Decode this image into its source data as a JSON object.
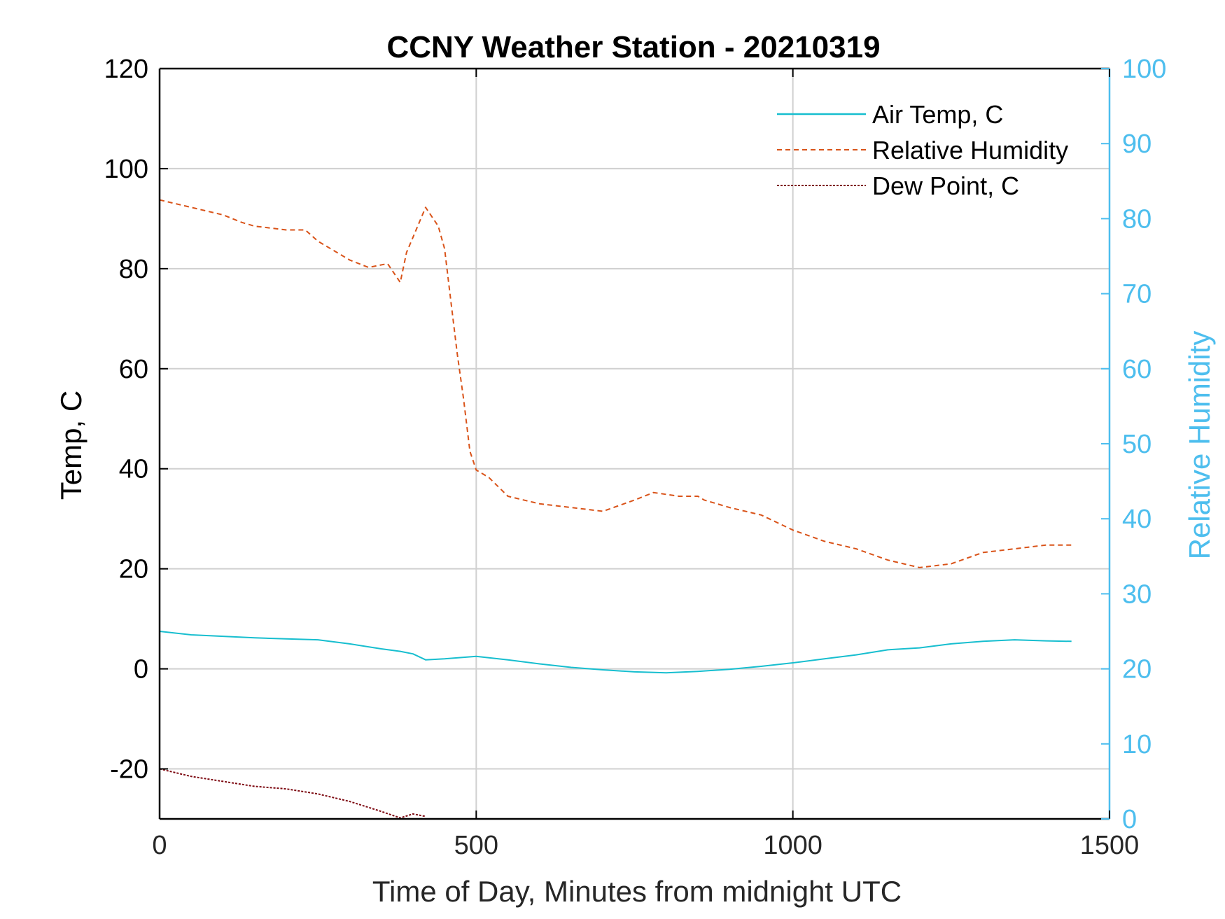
{
  "chart_data": {
    "type": "line",
    "title": "CCNY Weather Station - 20210319",
    "xlabel": "Time of Day, Minutes from midnight UTC",
    "ylabel_left": "Temp, C",
    "ylabel_right": "Relative Humidity",
    "xlim": [
      0,
      1500
    ],
    "ylim_left": [
      -30,
      120
    ],
    "ylim_right": [
      0,
      100
    ],
    "xticks": [
      0,
      500,
      1000,
      1500
    ],
    "yticks_left": [
      -20,
      0,
      20,
      40,
      60,
      80,
      100,
      120
    ],
    "yticks_right": [
      0,
      10,
      20,
      30,
      40,
      50,
      60,
      70,
      80,
      90,
      100
    ],
    "grid": true,
    "legend_position": "top-right",
    "colors": {
      "left_axis": "#000000",
      "right_axis": "#4DBEEE",
      "grid": "#d0d0d0"
    },
    "series": [
      {
        "name": "Air Temp, C",
        "axis": "left",
        "color": "#17BECF",
        "style": "solid",
        "x": [
          0,
          50,
          100,
          150,
          200,
          250,
          300,
          350,
          380,
          400,
          420,
          450,
          500,
          550,
          600,
          650,
          700,
          750,
          800,
          850,
          900,
          950,
          1000,
          1050,
          1100,
          1150,
          1200,
          1250,
          1300,
          1350,
          1400,
          1440
        ],
        "values": [
          7.5,
          6.8,
          6.5,
          6.2,
          6.0,
          5.8,
          5.0,
          4.0,
          3.5,
          3.0,
          1.8,
          2.0,
          2.5,
          1.8,
          1.0,
          0.3,
          -0.2,
          -0.6,
          -0.8,
          -0.5,
          -0.1,
          0.5,
          1.2,
          2.0,
          2.8,
          3.8,
          4.2,
          5.0,
          5.5,
          5.8,
          5.6,
          5.5
        ]
      },
      {
        "name": "Relative Humidity",
        "axis": "right",
        "color": "#D95319",
        "style": "dashed",
        "x": [
          0,
          50,
          100,
          130,
          150,
          200,
          230,
          250,
          300,
          330,
          360,
          380,
          390,
          400,
          420,
          440,
          450,
          460,
          470,
          480,
          490,
          500,
          520,
          550,
          600,
          650,
          700,
          750,
          780,
          820,
          850,
          860,
          900,
          950,
          1000,
          1050,
          1100,
          1150,
          1200,
          1250,
          1300,
          1350,
          1400,
          1440
        ],
        "values": [
          82.5,
          81.5,
          80.5,
          79.5,
          79.0,
          78.5,
          78.5,
          77.0,
          74.5,
          73.5,
          74.0,
          71.5,
          75.5,
          77.5,
          81.5,
          79.0,
          76.0,
          69.0,
          62.0,
          56.0,
          49.0,
          46.5,
          45.5,
          43.0,
          42.0,
          41.5,
          41.0,
          42.5,
          43.5,
          43.0,
          43.0,
          42.5,
          41.5,
          40.5,
          38.5,
          37.0,
          36.0,
          34.5,
          33.5,
          34.0,
          35.5,
          36.0,
          36.5,
          36.5
        ]
      },
      {
        "name": "Dew Point, C",
        "axis": "left",
        "color": "#7E0A12",
        "style": "dotted",
        "x": [
          0,
          50,
          100,
          150,
          200,
          250,
          300,
          350,
          380,
          400,
          420
        ],
        "values": [
          -20.0,
          -21.5,
          -22.5,
          -23.5,
          -24.0,
          -25.0,
          -26.5,
          -28.5,
          -29.8,
          -29.0,
          -29.5
        ]
      }
    ]
  }
}
